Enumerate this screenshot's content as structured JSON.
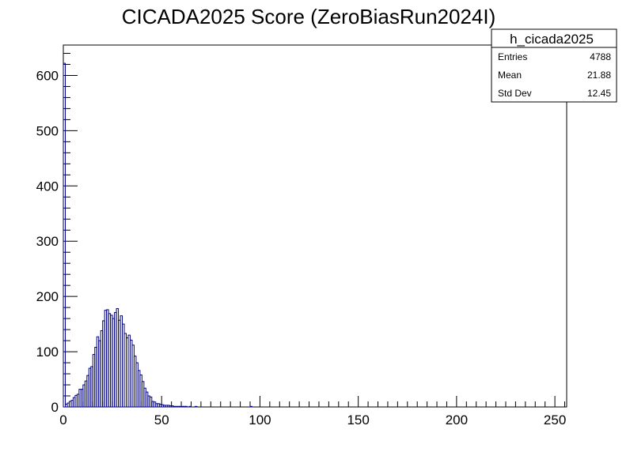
{
  "chart_data": {
    "type": "bar",
    "title": "CICADA2025 Score (ZeroBiasRun2024I)",
    "xlabel": "",
    "ylabel": "",
    "xlim": [
      0,
      256
    ],
    "ylim": [
      0,
      655
    ],
    "x_ticks": [
      0,
      50,
      100,
      150,
      200,
      250
    ],
    "y_ticks": [
      0,
      100,
      200,
      300,
      400,
      500,
      600
    ],
    "grid": false,
    "legend": "none",
    "bin_width": 1,
    "series": [
      {
        "line_color": "#00007f",
        "bin_starts": [
          0,
          1,
          2,
          3,
          4,
          5,
          6,
          7,
          8,
          9,
          10,
          11,
          12,
          13,
          14,
          15,
          16,
          17,
          18,
          19,
          20,
          21,
          22,
          23,
          24,
          25,
          26,
          27,
          28,
          29,
          30,
          31,
          32,
          33,
          34,
          35,
          36,
          37,
          38,
          39,
          40,
          41,
          42,
          43,
          44,
          45,
          46,
          47,
          48,
          49,
          50,
          51,
          52,
          53,
          54,
          55,
          56,
          57,
          58,
          59,
          60,
          61,
          62,
          63,
          64,
          65,
          66,
          67,
          95
        ],
        "values": [
          622,
          5,
          7,
          10,
          12,
          17,
          21,
          23,
          32,
          32,
          40,
          47,
          57,
          70,
          73,
          95,
          108,
          127,
          120,
          138,
          156,
          175,
          176,
          169,
          166,
          160,
          171,
          178,
          157,
          165,
          150,
          133,
          125,
          130,
          121,
          112,
          92,
          80,
          66,
          58,
          46,
          34,
          27,
          20,
          18,
          10,
          9,
          6,
          6,
          5,
          4,
          3,
          3,
          3,
          2,
          2,
          1,
          1,
          1,
          1,
          1,
          1,
          1,
          0,
          1,
          0,
          0,
          1,
          1
        ]
      }
    ]
  },
  "stats_box": {
    "title": "h_cicada2025",
    "rows": [
      {
        "label": "Entries",
        "value": "4788"
      },
      {
        "label": "Mean",
        "value": "21.88"
      },
      {
        "label": "Std Dev",
        "value": "12.45"
      }
    ]
  }
}
